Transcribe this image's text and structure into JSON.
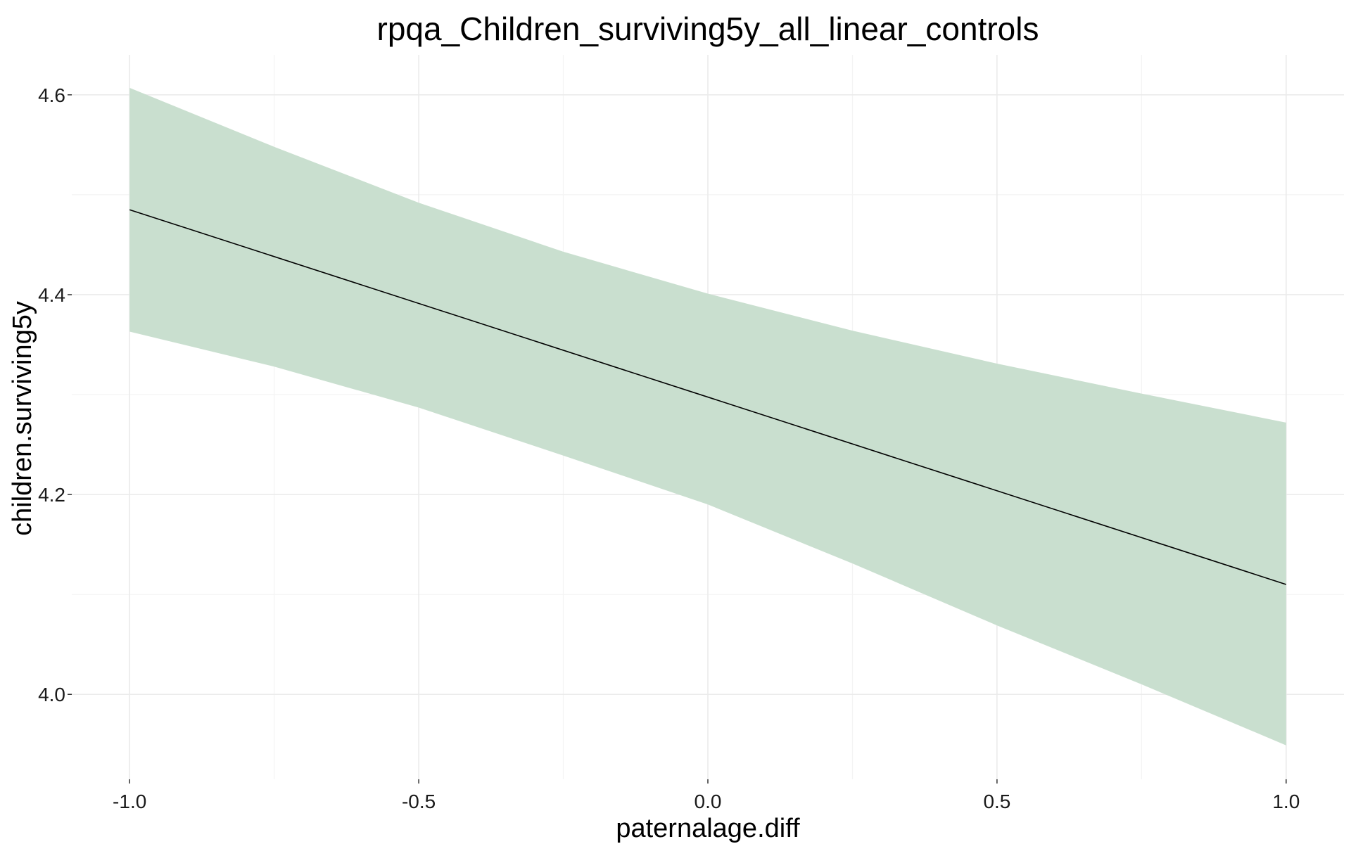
{
  "chart_data": {
    "type": "line",
    "title": "rpqa_Children_surviving5y_all_linear_controls",
    "xlabel": "paternalage.diff",
    "ylabel": "children.surviving5y",
    "xlim": [
      -1.1,
      1.1
    ],
    "ylim": [
      3.915,
      4.64
    ],
    "x_ticks": [
      -1.0,
      -0.5,
      0.0,
      0.5,
      1.0
    ],
    "x_tick_labels": [
      "-1.0",
      "-0.5",
      "0.0",
      "0.5",
      "1.0"
    ],
    "y_ticks": [
      4.0,
      4.2,
      4.4,
      4.6
    ],
    "y_tick_labels": [
      "4.0",
      "4.2",
      "4.4",
      "4.6"
    ],
    "grid": true,
    "legend": "none",
    "series": [
      {
        "x": [
          -1.0,
          1.0
        ],
        "y": [
          4.485,
          4.11
        ],
        "color": "#000000"
      }
    ],
    "ribbon": {
      "x": [
        -1.0,
        -0.75,
        -0.5,
        -0.25,
        0.0,
        0.25,
        0.5,
        0.75,
        1.0
      ],
      "upper": [
        4.607,
        4.548,
        4.492,
        4.443,
        4.401,
        4.364,
        4.331,
        4.301,
        4.272
      ],
      "lower": [
        4.363,
        4.328,
        4.287,
        4.239,
        4.19,
        4.131,
        4.069,
        4.01,
        3.949
      ],
      "color": "#c9dfcf"
    }
  }
}
